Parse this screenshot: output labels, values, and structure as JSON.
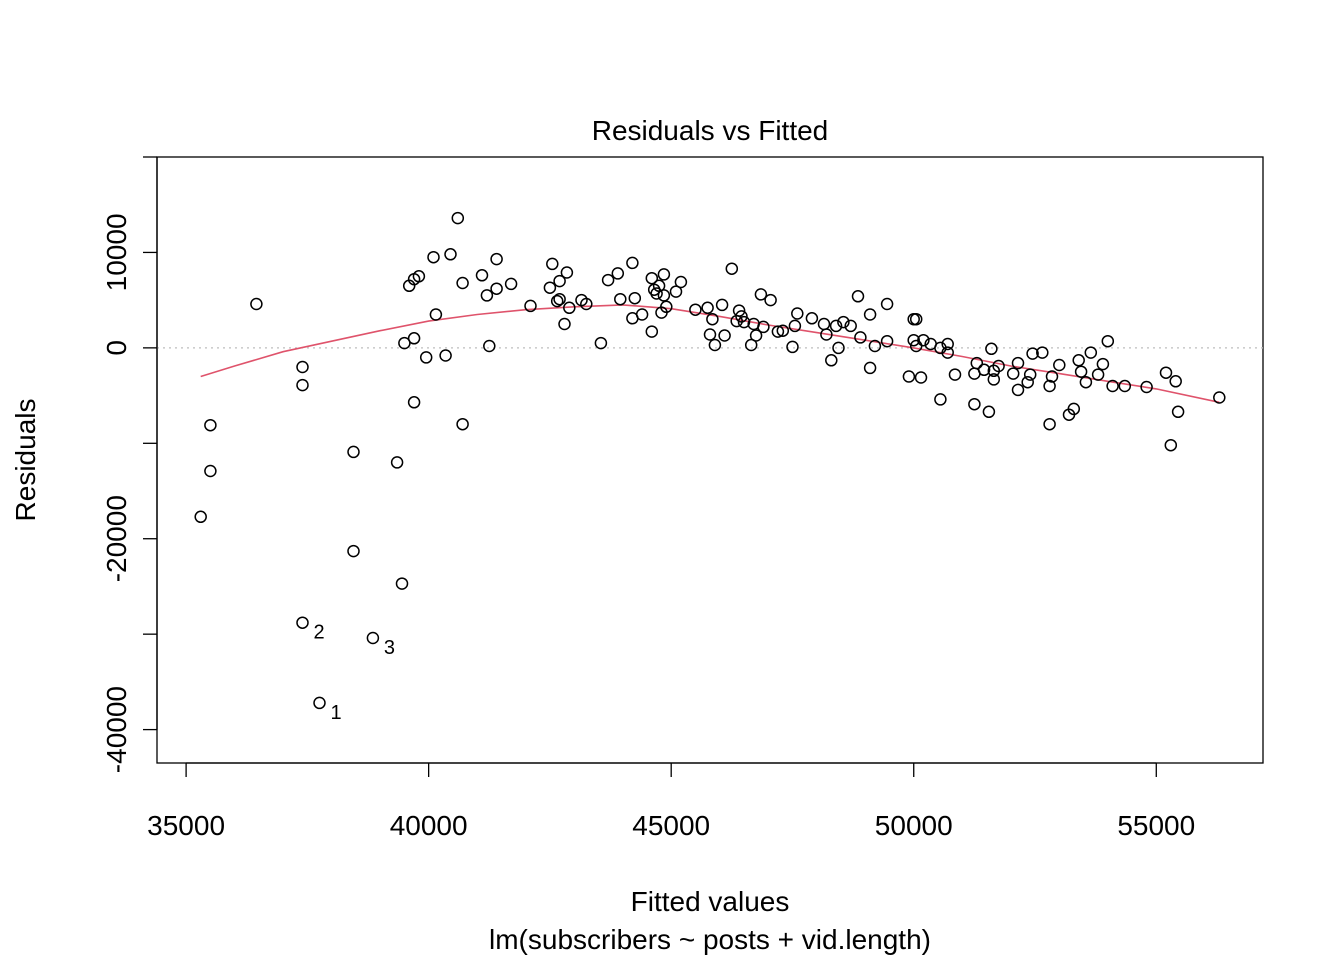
{
  "chart_data": {
    "type": "scatter",
    "title": "Residuals vs Fitted",
    "xlabel": "Fitted values",
    "sublabel": "lm(subscribers ~ posts + vid.length)",
    "ylabel": "Residuals",
    "xlim": [
      34400,
      57200
    ],
    "ylim": [
      -43500,
      20000
    ],
    "x_ticks": [
      35000,
      40000,
      45000,
      50000,
      55000
    ],
    "x_tick_labels": [
      "35000",
      "40000",
      "45000",
      "50000",
      "55000"
    ],
    "y_ticks": [
      -40000,
      -20000,
      0,
      10000
    ],
    "y_tick_labels": [
      "-40000",
      "-20000",
      "0",
      "10000"
    ],
    "y_tick_marks": [
      -40000,
      -30000,
      -20000,
      -10000,
      0,
      10000,
      20000
    ],
    "reference_line": {
      "y": 0,
      "color": "#bebebe",
      "style": "dotted"
    },
    "smooth_line": {
      "color": "#df536b",
      "x": [
        35300,
        36000,
        37000,
        38000,
        39000,
        40000,
        41000,
        42000,
        43000,
        44000,
        45000,
        46000,
        47000,
        48000,
        49000,
        50000,
        51000,
        52000,
        53000,
        54000,
        55000,
        56300
      ],
      "y": [
        -3000,
        -1900,
        -400,
        700,
        1800,
        2800,
        3500,
        4000,
        4300,
        4500,
        4100,
        3300,
        2400,
        1600,
        800,
        0,
        -900,
        -1900,
        -2700,
        -3500,
        -4300,
        -5700
      ]
    },
    "labeled_points": [
      {
        "label": "1",
        "x": 37750,
        "y": -37200
      },
      {
        "label": "2",
        "x": 37400,
        "y": -28800
      },
      {
        "label": "3",
        "x": 38850,
        "y": -30400
      }
    ],
    "points": [
      [
        35300,
        -17700
      ],
      [
        35500,
        -8100
      ],
      [
        35500,
        -12900
      ],
      [
        36450,
        4600
      ],
      [
        37400,
        -2000
      ],
      [
        37400,
        -3900
      ],
      [
        38450,
        -10900
      ],
      [
        38450,
        -21300
      ],
      [
        39350,
        -12000
      ],
      [
        39450,
        -24700
      ],
      [
        39500,
        500
      ],
      [
        39600,
        6500
      ],
      [
        39700,
        7200
      ],
      [
        39700,
        1000
      ],
      [
        39700,
        -5700
      ],
      [
        39800,
        7500
      ],
      [
        39950,
        -1000
      ],
      [
        40100,
        9500
      ],
      [
        40150,
        3500
      ],
      [
        40350,
        -800
      ],
      [
        40450,
        9800
      ],
      [
        40600,
        13600
      ],
      [
        40700,
        6800
      ],
      [
        40700,
        -8000
      ],
      [
        41100,
        7600
      ],
      [
        41200,
        5500
      ],
      [
        41250,
        200
      ],
      [
        41400,
        9300
      ],
      [
        41400,
        6200
      ],
      [
        41700,
        6700
      ],
      [
        42100,
        4400
      ],
      [
        42500,
        6300
      ],
      [
        42550,
        8800
      ],
      [
        42650,
        4900
      ],
      [
        42700,
        5100
      ],
      [
        42700,
        7000
      ],
      [
        42800,
        2500
      ],
      [
        42850,
        7900
      ],
      [
        42900,
        4200
      ],
      [
        43150,
        5000
      ],
      [
        43250,
        4600
      ],
      [
        43550,
        500
      ],
      [
        43700,
        7100
      ],
      [
        43900,
        7800
      ],
      [
        43950,
        5100
      ],
      [
        44200,
        8900
      ],
      [
        44200,
        3100
      ],
      [
        44250,
        5200
      ],
      [
        44400,
        3500
      ],
      [
        44600,
        1700
      ],
      [
        44600,
        7300
      ],
      [
        44650,
        6100
      ],
      [
        44700,
        5700
      ],
      [
        44750,
        6500
      ],
      [
        44800,
        3700
      ],
      [
        44850,
        7700
      ],
      [
        44900,
        4300
      ],
      [
        44850,
        5500
      ],
      [
        45100,
        5900
      ],
      [
        45200,
        6900
      ],
      [
        45500,
        4000
      ],
      [
        45750,
        4200
      ],
      [
        45800,
        1400
      ],
      [
        45850,
        3000
      ],
      [
        45900,
        300
      ],
      [
        46050,
        4500
      ],
      [
        46100,
        1300
      ],
      [
        46250,
        8300
      ],
      [
        46350,
        2800
      ],
      [
        46400,
        3900
      ],
      [
        46450,
        3300
      ],
      [
        46500,
        2700
      ],
      [
        46650,
        300
      ],
      [
        46700,
        2500
      ],
      [
        46750,
        1300
      ],
      [
        46850,
        5600
      ],
      [
        46900,
        2200
      ],
      [
        47050,
        5000
      ],
      [
        47200,
        1700
      ],
      [
        47300,
        1800
      ],
      [
        47500,
        100
      ],
      [
        47550,
        2300
      ],
      [
        47600,
        3600
      ],
      [
        47900,
        3100
      ],
      [
        48150,
        2500
      ],
      [
        48200,
        1400
      ],
      [
        48300,
        -1300
      ],
      [
        48400,
        2300
      ],
      [
        48450,
        0
      ],
      [
        48550,
        2700
      ],
      [
        48700,
        2300
      ],
      [
        48850,
        5400
      ],
      [
        48900,
        1100
      ],
      [
        49100,
        3500
      ],
      [
        49100,
        -2100
      ],
      [
        49200,
        200
      ],
      [
        49450,
        4600
      ],
      [
        49450,
        700
      ],
      [
        49900,
        -3000
      ],
      [
        50000,
        3000
      ],
      [
        50000,
        800
      ],
      [
        50050,
        3000
      ],
      [
        50050,
        200
      ],
      [
        50150,
        -3100
      ],
      [
        50200,
        800
      ],
      [
        50350,
        400
      ],
      [
        50550,
        -5400
      ],
      [
        50550,
        0
      ],
      [
        50700,
        400
      ],
      [
        50700,
        -500
      ],
      [
        50850,
        -2800
      ],
      [
        51250,
        -2700
      ],
      [
        51250,
        -5900
      ],
      [
        51300,
        -1600
      ],
      [
        51450,
        -2300
      ],
      [
        51550,
        -6700
      ],
      [
        51600,
        -100
      ],
      [
        51650,
        -2400
      ],
      [
        51650,
        -3300
      ],
      [
        51750,
        -1900
      ],
      [
        52050,
        -2700
      ],
      [
        52150,
        -1600
      ],
      [
        52150,
        -4400
      ],
      [
        52350,
        -3600
      ],
      [
        52400,
        -2800
      ],
      [
        52450,
        -600
      ],
      [
        52650,
        -500
      ],
      [
        52800,
        -8000
      ],
      [
        52800,
        -4000
      ],
      [
        52850,
        -3000
      ],
      [
        53000,
        -1800
      ],
      [
        53200,
        -7000
      ],
      [
        53300,
        -6400
      ],
      [
        53400,
        -1300
      ],
      [
        53450,
        -2500
      ],
      [
        53550,
        -3600
      ],
      [
        53650,
        -500
      ],
      [
        53800,
        -2800
      ],
      [
        53900,
        -1700
      ],
      [
        54000,
        700
      ],
      [
        54100,
        -4000
      ],
      [
        54350,
        -4000
      ],
      [
        54800,
        -4100
      ],
      [
        55200,
        -2600
      ],
      [
        55300,
        -10200
      ],
      [
        55400,
        -3500
      ],
      [
        55450,
        -6700
      ],
      [
        56300,
        -5200
      ]
    ]
  }
}
